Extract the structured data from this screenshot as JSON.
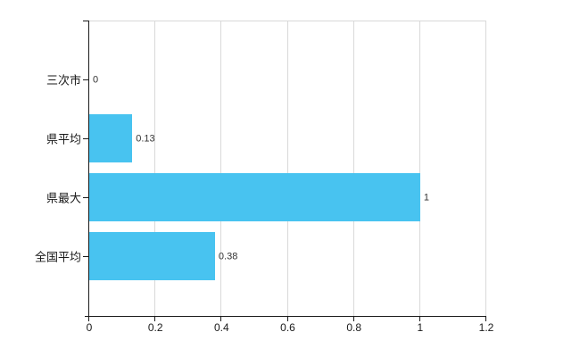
{
  "chart_data": {
    "type": "bar",
    "orientation": "horizontal",
    "title": "",
    "xlabel": "",
    "ylabel": "",
    "categories": [
      "三次市",
      "県平均",
      "県最大",
      "全国平均"
    ],
    "values": [
      0,
      0.13,
      1,
      0.38
    ],
    "value_labels": [
      "0",
      "0.13",
      "1",
      "0.38"
    ],
    "xlim": [
      0,
      1.2
    ],
    "x_tick_values": [
      0,
      0.2,
      0.4,
      0.6,
      0.8,
      1,
      1.2
    ],
    "x_tick_labels": [
      "0",
      "0.2",
      "0.4",
      "0.6",
      "0.8",
      "1",
      "1.2"
    ],
    "grid": "vertical",
    "legend": "none",
    "colors": {
      "bar": "#48c3f0",
      "axis": "#1a1a1a",
      "grid": "#d9d9d9",
      "value_label": "#333333",
      "tick_label": "#1a1a1a"
    }
  }
}
